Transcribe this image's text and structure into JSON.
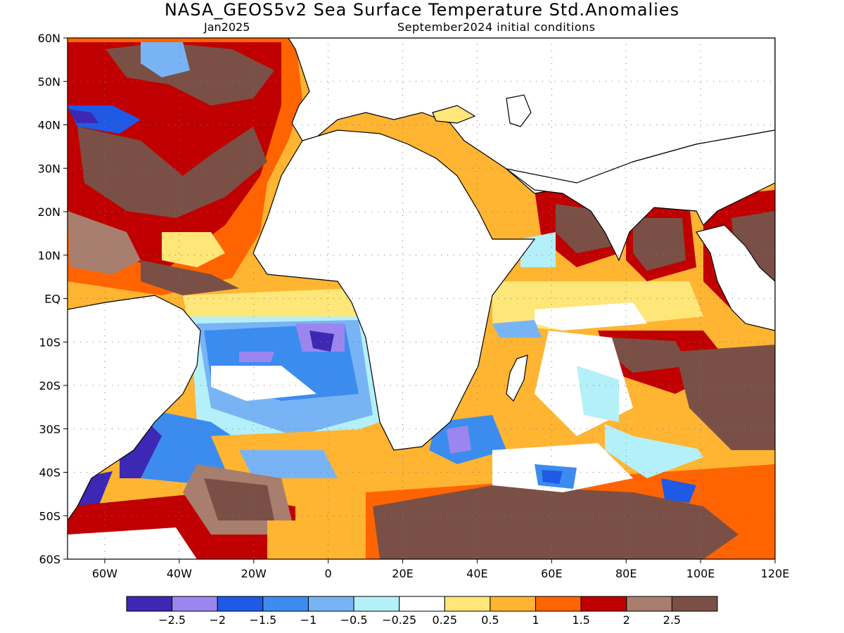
{
  "title": "NASA_GEOS5v2 Sea Surface Temperature Std.Anomalies",
  "subtitle_left": "Jan2025",
  "subtitle_right": "September2024 initial conditions",
  "map": {
    "lon_range": [
      -70,
      120
    ],
    "lat_range": [
      -60,
      60
    ],
    "lon_ticks": [
      {
        "value": -60,
        "label": "60W"
      },
      {
        "value": -40,
        "label": "40W"
      },
      {
        "value": -20,
        "label": "20W"
      },
      {
        "value": 0,
        "label": "0"
      },
      {
        "value": 20,
        "label": "20E"
      },
      {
        "value": 40,
        "label": "40E"
      },
      {
        "value": 60,
        "label": "60E"
      },
      {
        "value": 80,
        "label": "80E"
      },
      {
        "value": 100,
        "label": "100E"
      },
      {
        "value": 120,
        "label": "120E"
      }
    ],
    "lat_ticks": [
      {
        "value": 60,
        "label": "60N"
      },
      {
        "value": 50,
        "label": "50N"
      },
      {
        "value": 40,
        "label": "40N"
      },
      {
        "value": 30,
        "label": "30N"
      },
      {
        "value": 20,
        "label": "20N"
      },
      {
        "value": 10,
        "label": "10N"
      },
      {
        "value": 0,
        "label": "EQ"
      },
      {
        "value": -10,
        "label": "10S"
      },
      {
        "value": -20,
        "label": "20S"
      },
      {
        "value": -30,
        "label": "30S"
      },
      {
        "value": -40,
        "label": "40S"
      },
      {
        "value": -50,
        "label": "50S"
      },
      {
        "value": -60,
        "label": "60S"
      }
    ],
    "grid": "dotted",
    "land_color": "#ffffff"
  },
  "colorbar": {
    "colors": [
      "#3c28b4",
      "#9b86f0",
      "#1e5ae6",
      "#3c8cf0",
      "#78b4f5",
      "#b4f0fa",
      "#ffffff",
      "#ffe678",
      "#ffb432",
      "#ff6400",
      "#c00000",
      "#a87e6e",
      "#7a5046"
    ],
    "labels": [
      "-2.5",
      "-2",
      "-1.5",
      "-1",
      "-0.5",
      "-0.25",
      "0.25",
      "0.5",
      "1",
      "1.5",
      "2",
      "2.5"
    ]
  }
}
